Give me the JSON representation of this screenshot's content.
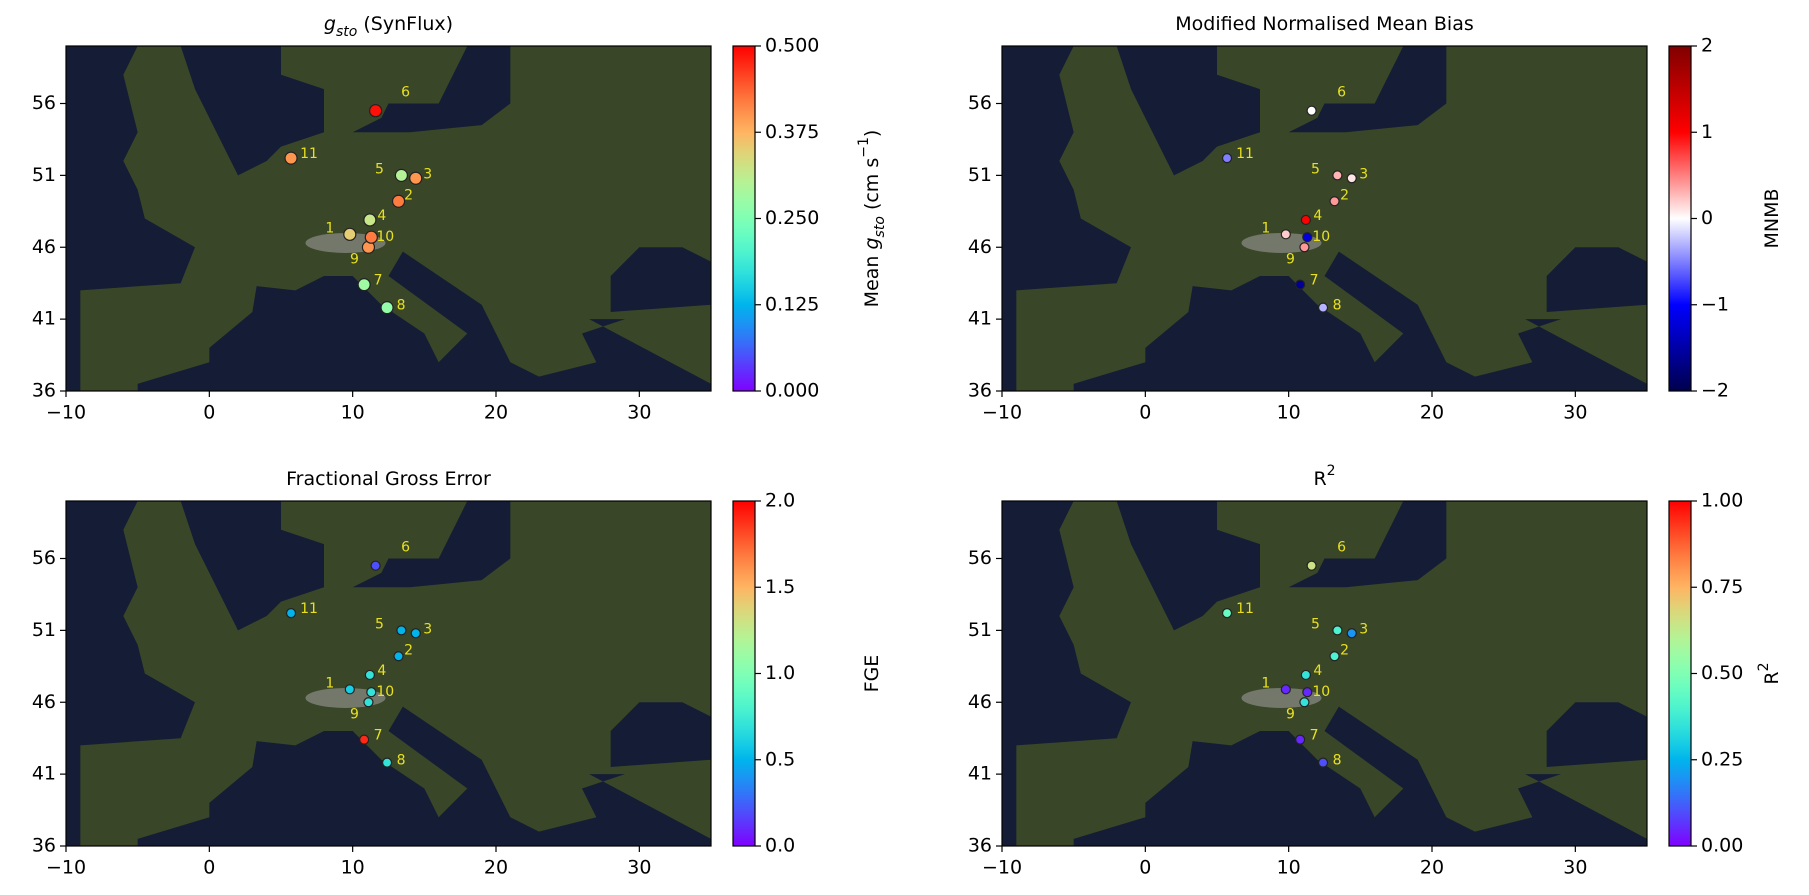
{
  "chart_data": [
    {
      "type": "scatter",
      "title": [
        {
          "text": "g",
          "italic": true
        },
        {
          "text": "sto",
          "italic": true,
          "sub": true
        },
        {
          "text": " (SynFlux)"
        }
      ],
      "colorbar_label": [
        {
          "text": "Mean "
        },
        {
          "text": "g",
          "italic": true
        },
        {
          "text": "sto",
          "italic": true,
          "sub": true
        },
        {
          "text": " (cm s"
        },
        {
          "text": "−1",
          "sup": true
        },
        {
          "text": ")"
        }
      ],
      "point_labels": [
        "1",
        "2",
        "3",
        "4",
        "5",
        "6",
        "7",
        "8",
        "9",
        "10",
        "11"
      ],
      "x": [
        9.8,
        13.2,
        14.4,
        11.2,
        13.4,
        11.6,
        10.8,
        12.4,
        11.1,
        11.3,
        5.7
      ],
      "y": [
        46.9,
        49.2,
        50.8,
        47.9,
        51.0,
        55.5,
        43.4,
        41.8,
        46.0,
        46.7,
        52.2
      ],
      "values": [
        0.35,
        0.42,
        0.4,
        0.32,
        0.3,
        0.49,
        0.28,
        0.27,
        0.4,
        0.42,
        0.4
      ],
      "colormap": "rainbow",
      "clim": [
        0,
        0.5
      ],
      "cticks": [
        {
          "value": 0,
          "label": "0.000"
        },
        {
          "value": 0.125,
          "label": "0.125"
        },
        {
          "value": 0.25,
          "label": "0.250"
        },
        {
          "value": 0.375,
          "label": "0.375"
        },
        {
          "value": 0.5,
          "label": "0.500"
        }
      ],
      "xlim": [
        -10,
        35
      ],
      "ylim": [
        36,
        60
      ],
      "xticks": [
        {
          "value": -10,
          "label": "−10"
        },
        0,
        10,
        20,
        30
      ],
      "yticks": [
        36,
        41,
        46,
        51,
        56
      ]
    },
    {
      "type": "scatter",
      "title": [
        {
          "text": "Modified Normalised Mean Bias"
        }
      ],
      "colorbar_label": [
        {
          "text": "MNMB"
        }
      ],
      "point_labels": [
        "1",
        "2",
        "3",
        "4",
        "5",
        "6",
        "7",
        "8",
        "9",
        "10",
        "11"
      ],
      "x": [
        9.8,
        13.2,
        14.4,
        11.2,
        13.4,
        11.6,
        10.8,
        12.4,
        11.1,
        11.3,
        5.7
      ],
      "y": [
        46.9,
        49.2,
        50.8,
        47.9,
        51.0,
        55.5,
        43.4,
        41.8,
        46.0,
        46.7,
        52.2
      ],
      "values": [
        0.2,
        0.4,
        0.1,
        1.0,
        0.3,
        0.0,
        -1.6,
        -0.3,
        0.4,
        -1.2,
        -0.5
      ],
      "colormap": "seismic",
      "clim": [
        -2,
        2
      ],
      "cticks": [
        {
          "value": -2,
          "label": "−2"
        },
        {
          "value": -1,
          "label": "−1"
        },
        0,
        1,
        2
      ],
      "xlim": [
        -10,
        35
      ],
      "ylim": [
        36,
        60
      ],
      "xticks": [
        {
          "value": -10,
          "label": "−10"
        },
        0,
        10,
        20,
        30
      ],
      "yticks": [
        36,
        41,
        46,
        51,
        56
      ]
    },
    {
      "type": "scatter",
      "title": [
        {
          "text": "Fractional Gross Error"
        }
      ],
      "colorbar_label": [
        {
          "text": "FGE"
        }
      ],
      "point_labels": [
        "1",
        "2",
        "3",
        "4",
        "5",
        "6",
        "7",
        "8",
        "9",
        "10",
        "11"
      ],
      "x": [
        9.8,
        13.2,
        14.4,
        11.2,
        13.4,
        11.6,
        10.8,
        12.4,
        11.1,
        11.3,
        5.7
      ],
      "y": [
        46.9,
        49.2,
        50.8,
        47.9,
        51.0,
        55.5,
        43.4,
        41.8,
        46.0,
        46.7,
        52.2
      ],
      "values": [
        0.6,
        0.5,
        0.5,
        0.7,
        0.5,
        0.2,
        1.9,
        0.7,
        0.7,
        0.7,
        0.5
      ],
      "colormap": "rainbow",
      "clim": [
        0,
        2
      ],
      "cticks": [
        {
          "value": 0,
          "label": "0.0"
        },
        {
          "value": 0.5,
          "label": "0.5"
        },
        {
          "value": 1,
          "label": "1.0"
        },
        {
          "value": 1.5,
          "label": "1.5"
        },
        {
          "value": 2,
          "label": "2.0"
        }
      ],
      "xlim": [
        -10,
        35
      ],
      "ylim": [
        36,
        60
      ],
      "xticks": [
        {
          "value": -10,
          "label": "−10"
        },
        0,
        10,
        20,
        30
      ],
      "yticks": [
        36,
        41,
        46,
        51,
        56
      ]
    },
    {
      "type": "scatter",
      "title": [
        {
          "text": "R"
        },
        {
          "text": "2",
          "sup": true
        }
      ],
      "colorbar_label": [
        {
          "text": "R"
        },
        {
          "text": "2",
          "sup": true
        }
      ],
      "point_labels": [
        "1",
        "2",
        "3",
        "4",
        "5",
        "6",
        "7",
        "8",
        "9",
        "10",
        "11"
      ],
      "x": [
        9.8,
        13.2,
        14.4,
        11.2,
        13.4,
        11.6,
        10.8,
        12.4,
        11.1,
        11.3,
        5.7
      ],
      "y": [
        46.9,
        49.2,
        50.8,
        47.9,
        51.0,
        55.5,
        43.4,
        41.8,
        46.0,
        46.7,
        52.2
      ],
      "values": [
        0.05,
        0.4,
        0.2,
        0.35,
        0.4,
        0.65,
        0.05,
        0.1,
        0.35,
        0.05,
        0.45
      ],
      "colormap": "rainbow",
      "clim": [
        0,
        1
      ],
      "cticks": [
        {
          "value": 0,
          "label": "0.00"
        },
        {
          "value": 0.25,
          "label": "0.25"
        },
        {
          "value": 0.5,
          "label": "0.50"
        },
        {
          "value": 0.75,
          "label": "0.75"
        },
        {
          "value": 1,
          "label": "1.00"
        }
      ],
      "xlim": [
        -10,
        35
      ],
      "ylim": [
        36,
        60
      ],
      "xticks": [
        {
          "value": -10,
          "label": "−10"
        },
        0,
        10,
        20,
        30
      ],
      "yticks": [
        36,
        41,
        46,
        51,
        56
      ]
    }
  ]
}
